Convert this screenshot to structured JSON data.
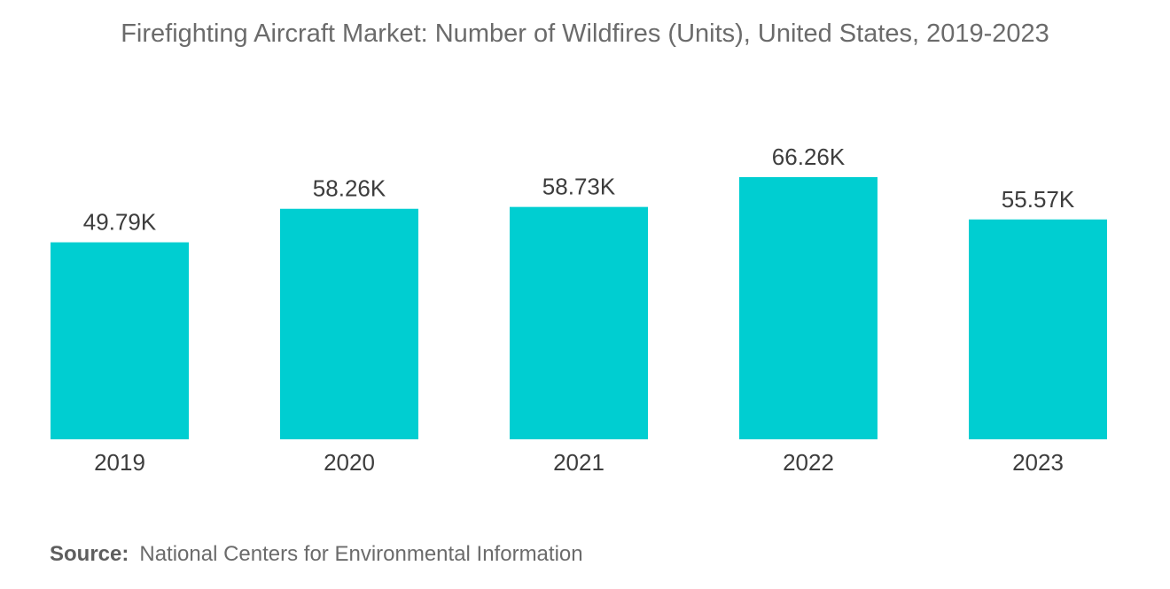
{
  "colors": {
    "bar": "#00ced1",
    "title": "#6b6b6b",
    "label": "#3d3d3d"
  },
  "source": {
    "label": "Source:",
    "text": "National Centers for Environmental Information"
  },
  "chart_data": {
    "type": "bar",
    "title": "Firefighting Aircraft Market: Number of Wildfires (Units), United States, 2019-2023",
    "xlabel": "",
    "ylabel": "",
    "categories": [
      "2019",
      "2020",
      "2021",
      "2022",
      "2023"
    ],
    "values": [
      49.79,
      58.26,
      58.73,
      66.26,
      55.57
    ],
    "value_labels": [
      "49.79K",
      "58.26K",
      "58.73K",
      "66.26K",
      "55.57K"
    ],
    "unit": "thousand units",
    "ylim": [
      0,
      66.26
    ],
    "grid": false,
    "legend": "none"
  }
}
